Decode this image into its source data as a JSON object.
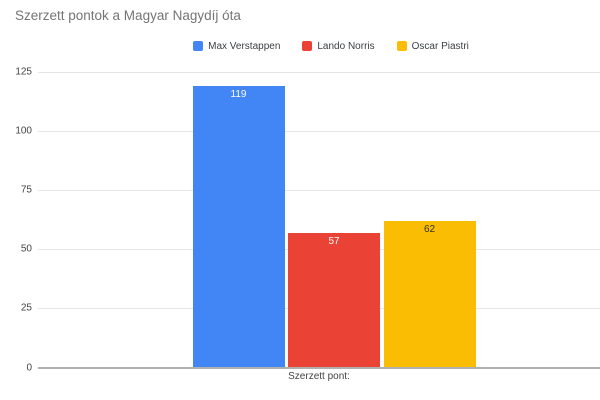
{
  "title": "Szerzett pontok a Magyar Nagydíj óta",
  "chart_data": {
    "type": "bar",
    "title": "Szerzett pontok a Magyar Nagydíj óta",
    "categories": [
      "Szerzett pont:"
    ],
    "series": [
      {
        "name": "Max Verstappen",
        "value": 119,
        "color": "#4285f4",
        "label_color": "#ffffff"
      },
      {
        "name": "Lando Norris",
        "value": 57,
        "color": "#ea4335",
        "label_color": "#ffffff"
      },
      {
        "name": "Oscar Piastri",
        "value": 62,
        "color": "#fbbc04",
        "label_color": "#333333"
      }
    ],
    "xlabel": "Szerzett pont:",
    "ylabel": "",
    "ylim": [
      0,
      125
    ],
    "yticks": [
      0,
      25,
      50,
      75,
      100,
      125
    ],
    "grid": true,
    "legend_position": "top",
    "colors": {
      "title_text": "#757575",
      "tick_text": "#444444",
      "legend_text": "#3c4043",
      "gridline": "#e6e6e6",
      "axis_line": "#b0b0b0",
      "background": "#ffffff"
    }
  }
}
